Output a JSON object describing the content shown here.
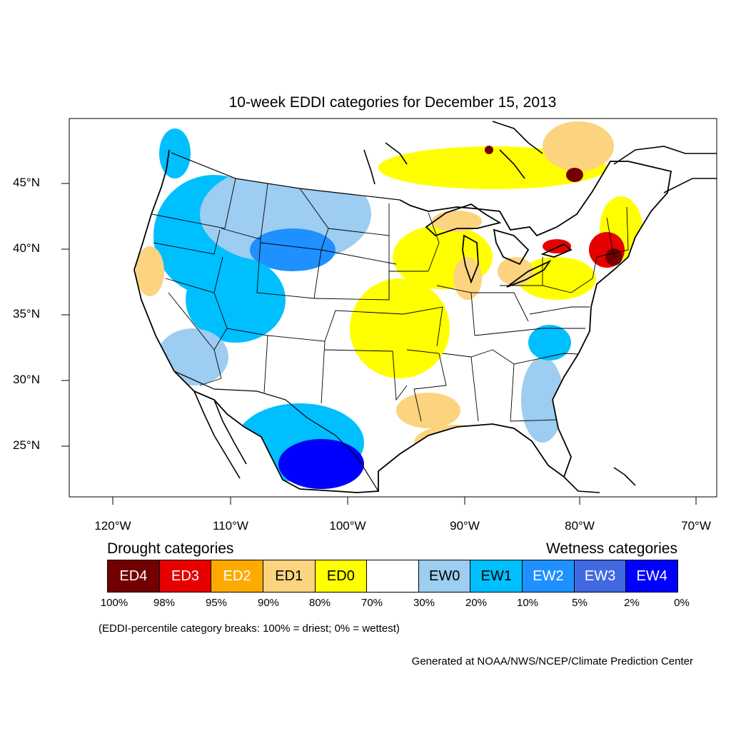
{
  "title": "10-week EDDI categories for December 15, 2013",
  "axes": {
    "lat_labels": [
      "45°N",
      "40°N",
      "35°N",
      "30°N",
      "25°N"
    ],
    "lon_labels": [
      "120°W",
      "110°W",
      "100°W",
      "90°W",
      "80°W",
      "70°W"
    ]
  },
  "legend": {
    "drought_heading": "Drought categories",
    "wetness_heading": "Wetness categories",
    "categories": [
      {
        "label": "ED4",
        "color": "#730000",
        "text_color": "#ffffff"
      },
      {
        "label": "ED3",
        "color": "#e60000",
        "text_color": "#ffffff"
      },
      {
        "label": "ED2",
        "color": "#ffaa00",
        "text_color": "#ffffff"
      },
      {
        "label": "ED1",
        "color": "#fcd37f",
        "text_color": "#000000"
      },
      {
        "label": "ED0",
        "color": "#ffff00",
        "text_color": "#000000"
      },
      {
        "label": "",
        "color": "#ffffff",
        "text_color": "#000000"
      },
      {
        "label": "EW0",
        "color": "#9dcdf0",
        "text_color": "#000000"
      },
      {
        "label": "EW1",
        "color": "#00bfff",
        "text_color": "#000000"
      },
      {
        "label": "EW2",
        "color": "#1e90ff",
        "text_color": "#ffffff"
      },
      {
        "label": "EW3",
        "color": "#4169e1",
        "text_color": "#ffffff"
      },
      {
        "label": "EW4",
        "color": "#0000ff",
        "text_color": "#ffffff"
      }
    ],
    "percent_breaks": [
      "100%",
      "98%",
      "95%",
      "90%",
      "80%",
      "70%",
      "30%",
      "20%",
      "10%",
      "5%",
      "2%",
      "0%"
    ]
  },
  "note": "(EDDI-percentile category breaks: 100% = driest; 0% = wettest)",
  "credit": "Generated at NOAA/NWS/NCEP/Climate Prediction Center"
}
